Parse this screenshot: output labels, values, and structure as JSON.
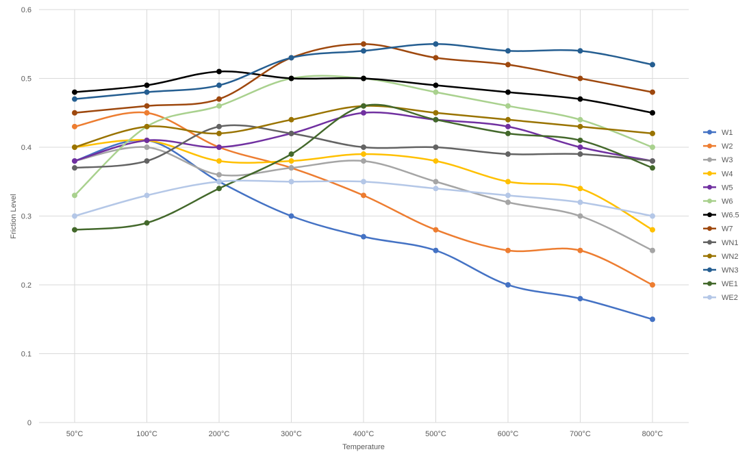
{
  "chart_data": {
    "type": "line",
    "title": "",
    "xlabel": "Temperature",
    "ylabel": "Friction Level",
    "categories": [
      "50°C",
      "100°C",
      "200°C",
      "300°C",
      "400°C",
      "500°C",
      "600°C",
      "700°C",
      "800°C"
    ],
    "ylim": [
      0,
      0.6
    ],
    "yticks": [
      "0",
      "0.1",
      "0.2",
      "0.3",
      "0.4",
      "0.5",
      "0.6"
    ],
    "ytick_values": [
      0,
      0.1,
      0.2,
      0.3,
      0.4,
      0.5,
      0.6
    ],
    "grid": "horizontal and vertical",
    "legend_position": "right",
    "smooth": true,
    "series": [
      {
        "name": "W1",
        "color": "#4472C4",
        "values": [
          0.38,
          0.41,
          0.35,
          0.3,
          0.27,
          0.25,
          0.2,
          0.18,
          0.15
        ]
      },
      {
        "name": "W2",
        "color": "#ED7D31",
        "values": [
          0.43,
          0.45,
          0.4,
          0.37,
          0.33,
          0.28,
          0.25,
          0.25,
          0.2
        ]
      },
      {
        "name": "W3",
        "color": "#A5A5A5",
        "values": [
          0.38,
          0.4,
          0.36,
          0.37,
          0.38,
          0.35,
          0.32,
          0.3,
          0.25
        ]
      },
      {
        "name": "W4",
        "color": "#FFC000",
        "values": [
          0.4,
          0.41,
          0.38,
          0.38,
          0.39,
          0.38,
          0.35,
          0.34,
          0.28
        ]
      },
      {
        "name": "W5",
        "color": "#7030A0",
        "values": [
          0.38,
          0.41,
          0.4,
          0.42,
          0.45,
          0.44,
          0.43,
          0.4,
          0.38
        ]
      },
      {
        "name": "W6",
        "color": "#A9D18E",
        "values": [
          0.33,
          0.43,
          0.46,
          0.5,
          0.5,
          0.48,
          0.46,
          0.44,
          0.4
        ]
      },
      {
        "name": "W6.5",
        "color": "#000000",
        "values": [
          0.48,
          0.49,
          0.51,
          0.5,
          0.5,
          0.49,
          0.48,
          0.47,
          0.45
        ]
      },
      {
        "name": "W7",
        "color": "#9E480E",
        "values": [
          0.45,
          0.46,
          0.47,
          0.53,
          0.55,
          0.53,
          0.52,
          0.5,
          0.48
        ]
      },
      {
        "name": "WN1",
        "color": "#636363",
        "values": [
          0.37,
          0.38,
          0.43,
          0.42,
          0.4,
          0.4,
          0.39,
          0.39,
          0.38
        ]
      },
      {
        "name": "WN2",
        "color": "#997300",
        "values": [
          0.4,
          0.43,
          0.42,
          0.44,
          0.46,
          0.45,
          0.44,
          0.43,
          0.42
        ]
      },
      {
        "name": "WN3",
        "color": "#255E91",
        "values": [
          0.47,
          0.48,
          0.49,
          0.53,
          0.54,
          0.55,
          0.54,
          0.54,
          0.52
        ]
      },
      {
        "name": "WE1",
        "color": "#43682B",
        "values": [
          0.28,
          0.29,
          0.34,
          0.39,
          0.46,
          0.44,
          0.42,
          0.41,
          0.37
        ]
      },
      {
        "name": "WE2",
        "color": "#B4C7E7",
        "values": [
          0.3,
          0.33,
          0.35,
          0.35,
          0.35,
          0.34,
          0.33,
          0.32,
          0.3
        ]
      }
    ]
  }
}
